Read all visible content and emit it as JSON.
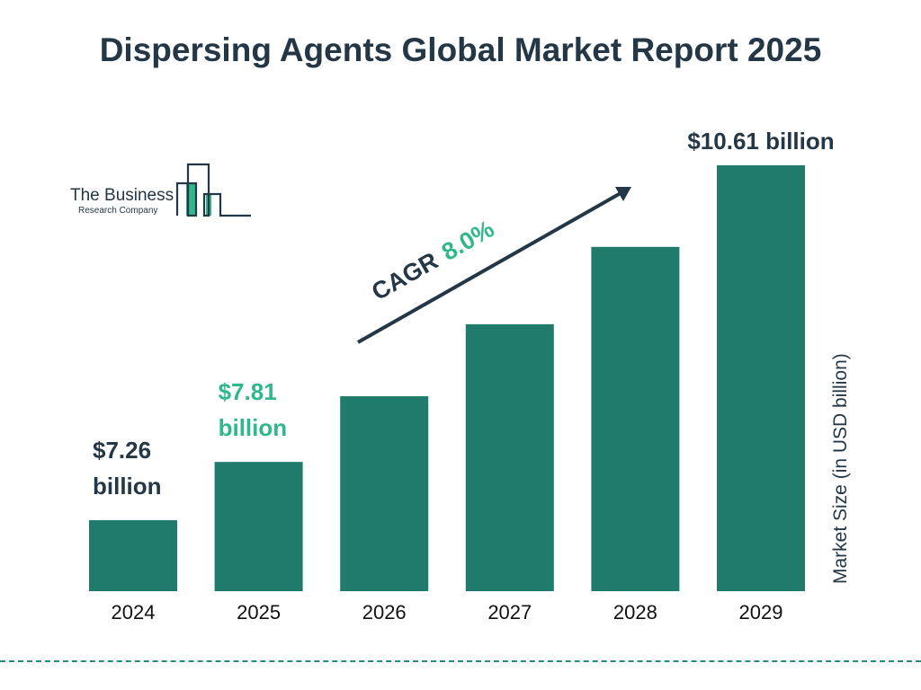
{
  "title": "Dispersing Agents Global Market Report 2025",
  "logo": {
    "line1": "The Business",
    "line2": "Research Company"
  },
  "chart_data": {
    "type": "bar",
    "categories": [
      "2024",
      "2025",
      "2026",
      "2027",
      "2028",
      "2029"
    ],
    "values": [
      7.26,
      7.81,
      8.43,
      9.11,
      9.84,
      10.61
    ],
    "data_labels": [
      "$7.26 billion",
      "$7.81 billion",
      "",
      "",
      "",
      "$10.61 billion"
    ],
    "data_label_colors": [
      "#243746",
      "#2fb88a",
      "",
      "",
      "",
      "#243746"
    ],
    "ylabel": "Market Size (in USD billion)",
    "cagr_label": "CAGR",
    "cagr_value": "8.0%",
    "bar_color": "#217b6c",
    "accent_color": "#2fb88a",
    "grid": false
  }
}
